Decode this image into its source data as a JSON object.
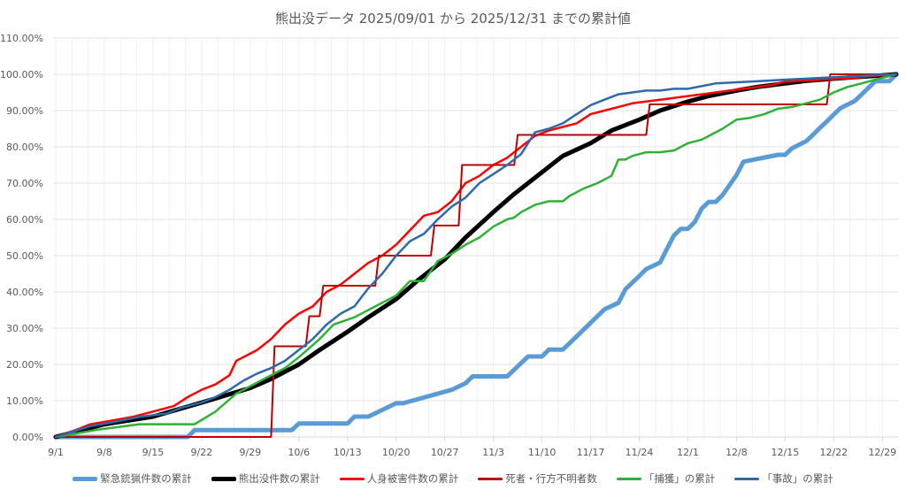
{
  "chart_data": {
    "type": "line",
    "title": "熊出没データ 2025/09/01 から 2025/12/31 までの累計値",
    "xlabel": "",
    "ylabel": "",
    "ylim": [
      0,
      110
    ],
    "y_ticks": [
      "0.00%",
      "10.00%",
      "20.00%",
      "30.00%",
      "40.00%",
      "50.00%",
      "60.00%",
      "70.00%",
      "80.00%",
      "90.00%",
      "100.00%",
      "110.00%"
    ],
    "x_ticks": [
      "9/1",
      "9/8",
      "9/15",
      "9/22",
      "9/29",
      "10/6",
      "10/13",
      "10/20",
      "10/27",
      "11/3",
      "11/10",
      "11/17",
      "11/24",
      "12/1",
      "12/8",
      "12/15",
      "12/22",
      "12/29"
    ],
    "x_range_days": [
      0,
      121
    ],
    "grid": true,
    "legend_position": "bottom",
    "series": [
      {
        "name": "緊急銃猟件数の累計",
        "color": "#5B9BD5",
        "width": 5,
        "x": [
          0,
          19,
          20,
          34,
          35,
          42,
          43,
          45,
          49,
          50,
          57,
          59,
          60,
          62,
          64,
          65,
          67,
          68,
          70,
          71,
          73,
          74,
          76,
          79,
          81,
          82,
          84,
          85,
          87,
          88,
          89,
          90,
          91,
          92,
          93,
          94,
          95,
          96,
          98,
          99,
          104,
          105,
          106,
          108,
          109,
          110,
          111,
          112,
          113,
          115,
          116,
          117,
          118,
          120,
          121
        ],
        "values": [
          0,
          0,
          1.9,
          1.9,
          3.7,
          3.7,
          5.6,
          5.6,
          9.3,
          9.3,
          13,
          14.8,
          16.7,
          16.7,
          16.7,
          16.7,
          20.4,
          22.2,
          22.2,
          24.1,
          24.1,
          25.9,
          29.6,
          35.2,
          37,
          40.7,
          44.4,
          46.3,
          48.1,
          51.9,
          55.6,
          57.4,
          57.4,
          59.3,
          63,
          64.8,
          64.8,
          66.7,
          72.2,
          75.9,
          77.8,
          77.8,
          79.6,
          81.5,
          83.3,
          85.2,
          87,
          88.9,
          90.7,
          92.6,
          94.4,
          96.3,
          98.1,
          98.1,
          100
        ]
      },
      {
        "name": "熊出没件数の累計",
        "color": "#000000",
        "width": 5,
        "x": [
          0,
          7,
          14,
          21,
          28,
          31,
          35,
          38,
          42,
          45,
          49,
          52,
          56,
          59,
          63,
          66,
          70,
          73,
          77,
          80,
          84,
          87,
          91,
          94,
          98,
          101,
          105,
          108,
          112,
          115,
          119,
          121
        ],
        "values": [
          0,
          3.5,
          5.6,
          9.5,
          13.5,
          16,
          20,
          24,
          29,
          33,
          38,
          43,
          49,
          55,
          62,
          67,
          73,
          77.5,
          81,
          84.5,
          87.5,
          90,
          92.5,
          94,
          95.5,
          96.5,
          97.5,
          98.2,
          98.8,
          99.2,
          99.7,
          100
        ]
      },
      {
        "name": "人身被害件数の累計",
        "color": "#FF0000",
        "width": 2.5,
        "x": [
          0,
          3,
          5,
          8,
          11,
          14,
          17,
          19,
          21,
          23,
          25,
          26,
          27,
          29,
          31,
          33,
          35,
          37,
          39,
          41,
          43,
          45,
          47,
          49,
          51,
          53,
          55,
          57,
          59,
          61,
          63,
          65,
          67,
          69,
          71,
          73,
          75,
          77,
          79,
          81,
          83,
          85,
          87,
          89,
          91,
          93,
          95,
          97,
          99,
          101,
          103,
          105,
          110,
          115,
          117,
          121
        ],
        "values": [
          0,
          2,
          3.5,
          4.5,
          5.5,
          7,
          8.5,
          11,
          13,
          14.5,
          17,
          21,
          22,
          24,
          27,
          31,
          34,
          36,
          40,
          42,
          45,
          48,
          50,
          53,
          57,
          61,
          62,
          65,
          70,
          72,
          75,
          77,
          80,
          83,
          84.5,
          85.5,
          86.5,
          89,
          90,
          91,
          92,
          92.5,
          93,
          93.5,
          94,
          94.5,
          95,
          95.5,
          96,
          96.5,
          97,
          98,
          98.5,
          99,
          99.5,
          100
        ]
      },
      {
        "name": "死者・行方不明者数",
        "color": "#C00000",
        "width": 2,
        "x": [
          0,
          31,
          31.5,
          36,
          36.5,
          38,
          38.5,
          46,
          46.5,
          54,
          54.5,
          58,
          58.5,
          62,
          62.5,
          66,
          66.5,
          85,
          85.5,
          111,
          111.5,
          121
        ],
        "values": [
          0,
          0,
          25,
          25,
          33.3,
          33.3,
          41.7,
          41.7,
          50,
          50,
          58.3,
          58.3,
          75,
          75,
          75,
          75,
          83.3,
          83.3,
          91.7,
          91.7,
          100,
          100
        ]
      },
      {
        "name": "「捕獲」の累計",
        "color": "#2EB135",
        "width": 2.5,
        "x": [
          0,
          6,
          10,
          12,
          20,
          23,
          26,
          28,
          30,
          33,
          35,
          38,
          40,
          43,
          46,
          49,
          51,
          53,
          55,
          57,
          59,
          61,
          63,
          65,
          66,
          67,
          69,
          71,
          73,
          74,
          76,
          78,
          80,
          81,
          82,
          83,
          85,
          87,
          89,
          91,
          93,
          95,
          96,
          98,
          100,
          102,
          104,
          106,
          108,
          110,
          112,
          114,
          116,
          118,
          121
        ],
        "values": [
          0,
          2,
          3,
          3.5,
          3.5,
          7,
          12,
          14,
          16,
          19,
          22,
          27,
          31,
          33,
          36,
          39,
          43,
          43,
          48.5,
          50.5,
          53,
          55,
          58,
          60,
          60.5,
          62,
          64,
          65,
          65,
          66.5,
          68.5,
          70,
          72,
          76.5,
          76.5,
          77.5,
          78.5,
          78.5,
          79,
          81,
          82,
          84,
          85,
          87.5,
          88,
          89,
          90.5,
          91,
          92,
          93,
          95,
          96.5,
          97.5,
          98.5,
          100
        ]
      },
      {
        "name": "「事故」の累計",
        "color": "#2E6AA8",
        "width": 2.5,
        "x": [
          0,
          5,
          8,
          12,
          16,
          18,
          21,
          23,
          25,
          27,
          29,
          31,
          33,
          35,
          37,
          39,
          41,
          43,
          45,
          47,
          49,
          51,
          53,
          55,
          57,
          59,
          61,
          63,
          65,
          67,
          69,
          71,
          73,
          75,
          77,
          79,
          81,
          83,
          85,
          87,
          89,
          91,
          95,
          100,
          105,
          110,
          115,
          121
        ],
        "values": [
          0,
          3,
          4,
          5.5,
          6.5,
          8,
          9.5,
          11,
          13,
          15.5,
          17.5,
          19,
          21,
          24,
          27,
          31,
          34,
          36,
          41,
          45,
          50,
          54,
          56,
          60,
          63.5,
          66,
          70,
          72.5,
          75,
          78,
          84,
          85,
          86.5,
          89,
          91.5,
          93,
          94.5,
          95,
          95.5,
          95.5,
          96,
          96,
          97.5,
          98,
          98.5,
          99,
          99.5,
          100
        ]
      }
    ]
  }
}
